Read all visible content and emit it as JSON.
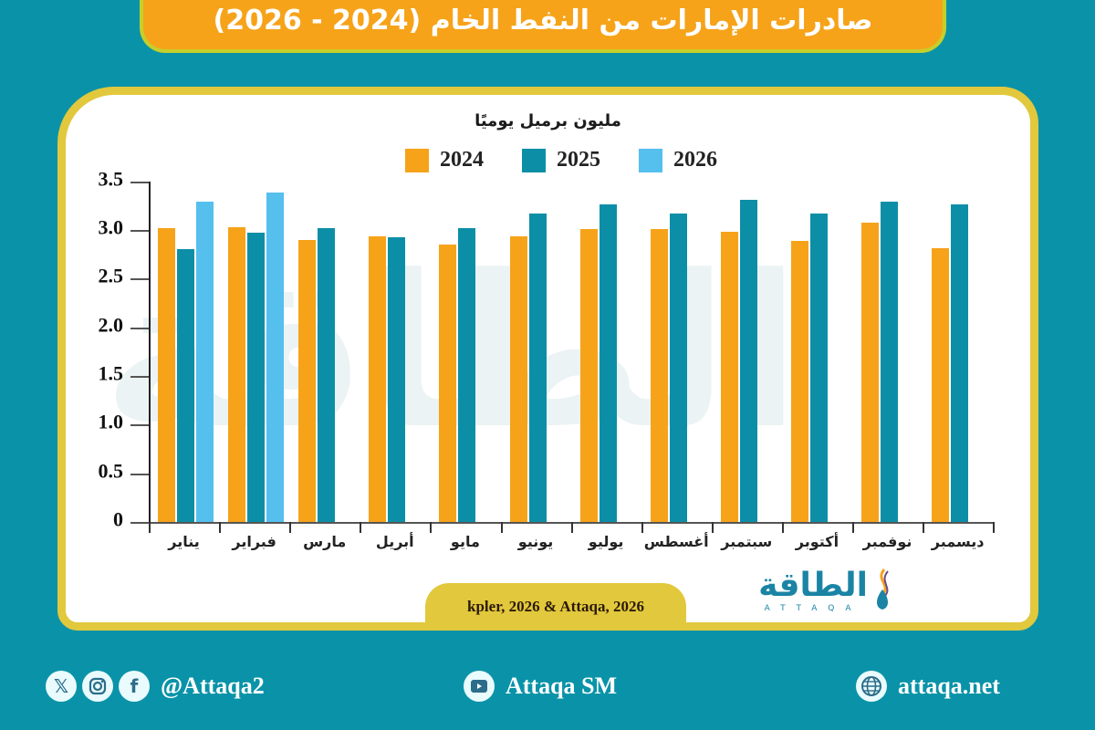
{
  "header": {
    "title": "صادرات الإمارات من النفط الخام (2024 - 2026)"
  },
  "chart_data": {
    "type": "bar",
    "title": "صادرات الإمارات من النفط الخام (2024 - 2026)",
    "ylabel": "مليون برميل يوميًا",
    "xlabel": "",
    "ylim": [
      0,
      3.5
    ],
    "yticks": [
      "0",
      "0.5",
      "1.0",
      "1.5",
      "2.0",
      "2.5",
      "3.0",
      "3.5"
    ],
    "grid": false,
    "legend_position": "top",
    "categories": [
      "يناير",
      "فبراير",
      "مارس",
      "أبريل",
      "مايو",
      "يونيو",
      "يوليو",
      "أغسطس",
      "سبتمبر",
      "أكتوبر",
      "نوفمبر",
      "ديسمبر"
    ],
    "series": [
      {
        "name": "2024",
        "color": "#f6a31a",
        "values": [
          3.02,
          3.03,
          2.9,
          2.93,
          2.85,
          2.93,
          3.01,
          3.01,
          2.98,
          2.89,
          3.07,
          2.81
        ]
      },
      {
        "name": "2025",
        "color": "#0c8fa6",
        "values": [
          2.8,
          2.97,
          3.02,
          2.92,
          3.02,
          3.17,
          3.26,
          3.17,
          3.31,
          3.17,
          3.29,
          3.26
        ]
      },
      {
        "name": "2026",
        "color": "#55bfee",
        "values": [
          3.29,
          3.38,
          null,
          null,
          null,
          null,
          null,
          null,
          null,
          null,
          null,
          null
        ]
      }
    ]
  },
  "legend": [
    {
      "label": "2024",
      "color": "#f6a31a"
    },
    {
      "label": "2025",
      "color": "#0c8fa6"
    },
    {
      "label": "2026",
      "color": "#55bfee"
    }
  ],
  "unit_label": "مليون برميل يوميًا",
  "source": "kpler, 2026 & Attaqa, 2026",
  "logo": {
    "arabic": "الطاقة",
    "latin": "ATTAQA"
  },
  "watermark": "الطاقة",
  "footer": {
    "social_handle": "@Attaqa2",
    "social_icons": [
      "x-icon",
      "instagram-icon",
      "facebook-icon"
    ],
    "youtube": "Attaqa SM",
    "website": "attaqa.net"
  }
}
